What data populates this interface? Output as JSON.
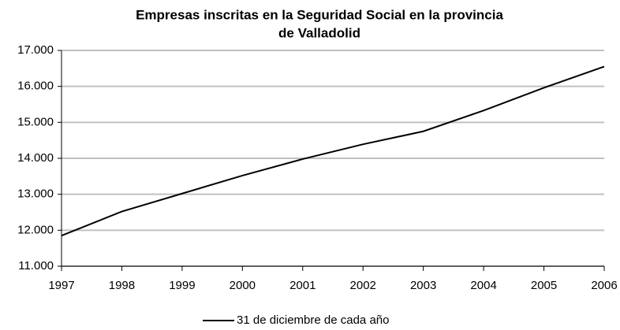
{
  "chart_data": {
    "type": "line",
    "title": [
      "Empresas inscritas en la Seguridad Social en la provincia",
      "de Valladolid"
    ],
    "x": [
      1997,
      1998,
      1999,
      2000,
      2001,
      2002,
      2003,
      2004,
      2005,
      2006
    ],
    "series": [
      {
        "name": "31 de diciembre de cada año",
        "color": "#000000",
        "values": [
          11850,
          12520,
          13020,
          13520,
          13980,
          14390,
          14750,
          15330,
          15960,
          16550
        ]
      }
    ],
    "xlim": [
      1997,
      2006
    ],
    "xticks": [
      1997,
      1998,
      1999,
      2000,
      2001,
      2002,
      2003,
      2004,
      2005,
      2006
    ],
    "ylim": [
      11000,
      17000
    ],
    "yticks": [
      {
        "value": 11000,
        "label": "11.000"
      },
      {
        "value": 12000,
        "label": "12.000"
      },
      {
        "value": 13000,
        "label": "13.000"
      },
      {
        "value": 14000,
        "label": "14.000"
      },
      {
        "value": 15000,
        "label": "15.000"
      },
      {
        "value": 16000,
        "label": "16.000"
      },
      {
        "value": 17000,
        "label": "17.000"
      }
    ],
    "grid": true,
    "legend": "bottom"
  }
}
